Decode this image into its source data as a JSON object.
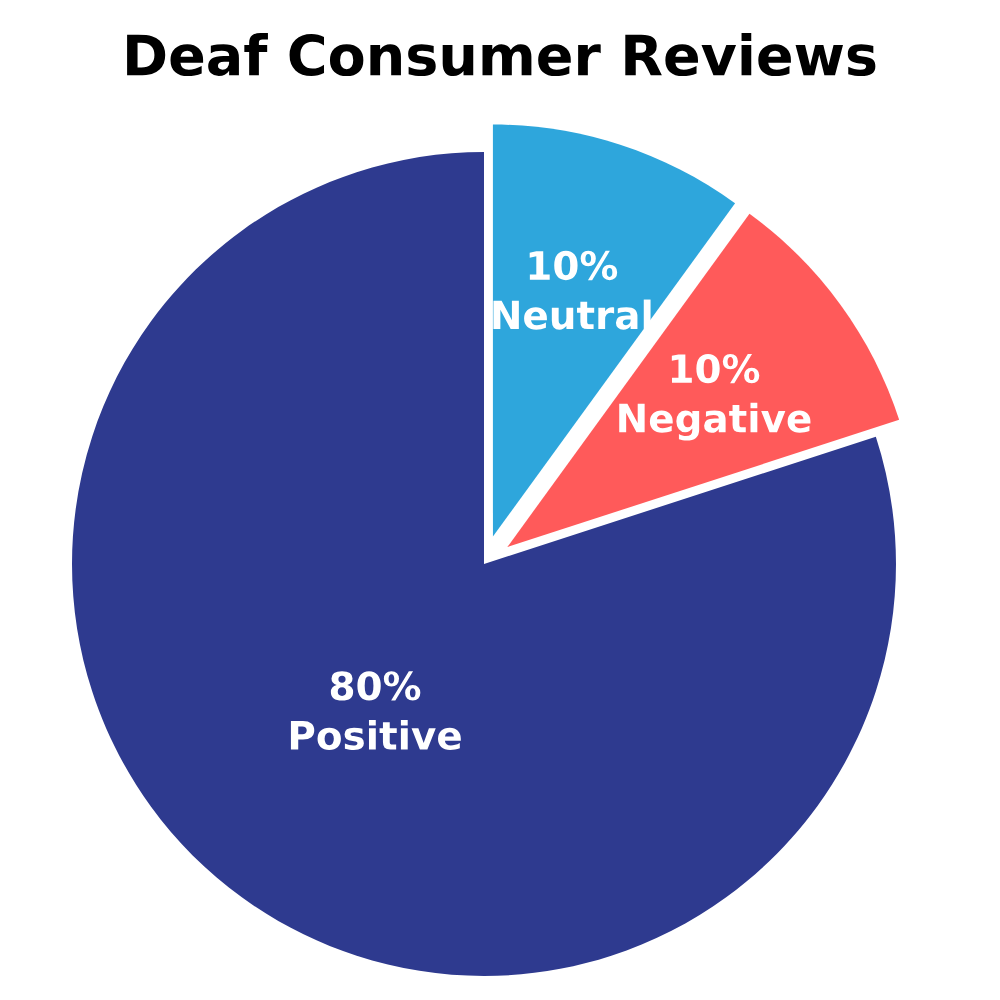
{
  "chart_data": {
    "type": "pie",
    "title": "Deaf Consumer Reviews",
    "categories": [
      "Neutral",
      "Negative",
      "Positive"
    ],
    "values": [
      10,
      10,
      80
    ],
    "colors": [
      "#2ea6dc",
      "#ff5a5a",
      "#2e3a8f"
    ],
    "value_labels": [
      "10%",
      "10%",
      "80%"
    ]
  }
}
